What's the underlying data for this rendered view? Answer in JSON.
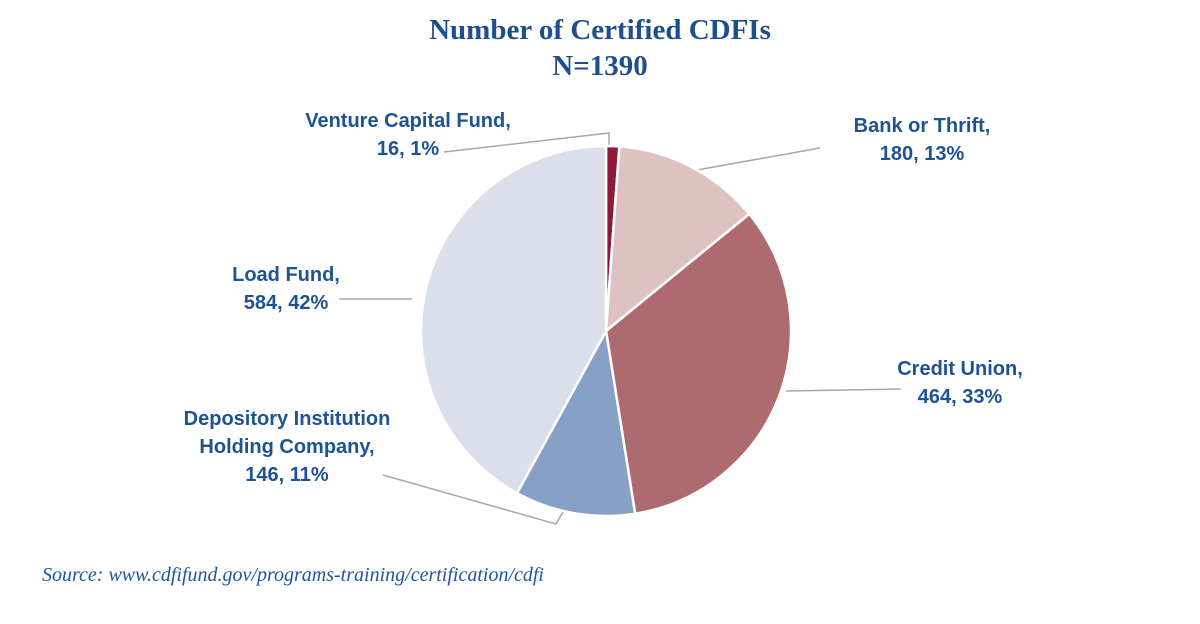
{
  "header": {
    "title_line1": "Number of Certified CDFIs",
    "title_line2": "N=1390"
  },
  "footer": {
    "source": "Source: www.cdfifund.gov/programs-training/certification/cdfi"
  },
  "colors": {
    "title": "#1F4E8C",
    "label": "#1D5293",
    "source": "#1E56A0",
    "leader_line": "#A8A8A8",
    "background": "#FFFFFF"
  },
  "chart_data": {
    "type": "pie",
    "title": "Number of Certified CDFIs",
    "subtitle": "N=1390",
    "total": 1390,
    "start_angle_deg": 0,
    "direction": "clockwise",
    "slice_border_color": "#FFFFFF",
    "leader_line_color": "#A8A8A8",
    "label_color": "#1D5293",
    "legend": "none",
    "label_style": "callout: name, value, percent",
    "slices": [
      {
        "label": "Venture Capital Fund",
        "value": 16,
        "percent": "1%",
        "color": "#8E1A38"
      },
      {
        "label": "Bank or Thrift",
        "value": 180,
        "percent": "13%",
        "color": "#DEC2C2"
      },
      {
        "label": "Credit Union",
        "value": 464,
        "percent": "33%",
        "color": "#AD6B70"
      },
      {
        "label": "Depository Institution Holding Company",
        "value": 146,
        "percent": "11%",
        "color": "#87A0C5"
      },
      {
        "label": "Load Fund",
        "value": 584,
        "percent": "42%",
        "color": "#DADFEB"
      }
    ]
  }
}
